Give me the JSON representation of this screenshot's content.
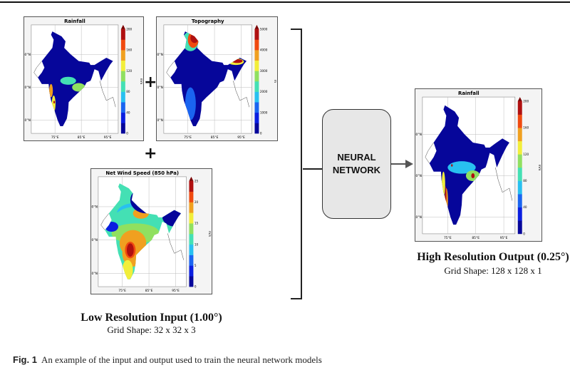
{
  "colors": {
    "jet": [
      "#06069a",
      "#0a1ee0",
      "#1a64f0",
      "#28c0f0",
      "#44e0b4",
      "#90e060",
      "#f2ee3a",
      "#f0a020",
      "#f04a10",
      "#b01010"
    ],
    "colorbar_top": "#7a0000",
    "network_box": "#e7e7e7"
  },
  "panels": {
    "rainfall_low": {
      "title": "Rainfall",
      "unit": "mm",
      "ticks": [
        "0",
        "40",
        "80",
        "120",
        "160",
        "200"
      ],
      "lat_labels": [
        "10°N",
        "20°N",
        "30°N"
      ],
      "lon_labels": [
        "75°E",
        "85°E",
        "95°E"
      ]
    },
    "topography": {
      "title": "Topography",
      "unit": "m",
      "ticks": [
        "0",
        "1000",
        "2000",
        "3000",
        "4000",
        "5000"
      ],
      "lat_labels": [
        "10°N",
        "20°N",
        "30°N"
      ],
      "lon_labels": [
        "75°E",
        "85°E",
        "95°E"
      ]
    },
    "wind": {
      "title": "Net Wind Speed (850 hPa)",
      "unit": "m/s",
      "ticks": [
        "0",
        "5",
        "10",
        "15",
        "20",
        "25"
      ],
      "lat_labels": [
        "10°N",
        "20°N",
        "30°N"
      ],
      "lon_labels": [
        "75°E",
        "85°E",
        "95°E"
      ]
    },
    "rainfall_high": {
      "title": "Rainfall",
      "unit": "mm",
      "ticks": [
        "0",
        "40",
        "80",
        "120",
        "160",
        "200"
      ],
      "lat_labels": [
        "10°N",
        "20°N",
        "30°N"
      ],
      "lon_labels": [
        "75°E",
        "85°E",
        "95°E"
      ]
    }
  },
  "operators": {
    "plus": "+"
  },
  "network": {
    "line1": "NEURAL",
    "line2": "NETWORK"
  },
  "input_label": {
    "title": "Low Resolution Input (1.00°)",
    "grid": "Grid Shape: 32 x 32 x 3"
  },
  "output_label": {
    "title": "High Resolution Output (0.25°)",
    "grid": "Grid Shape: 128 x 128 x 1"
  },
  "caption": {
    "label": "Fig. 1",
    "text": "An example of the input and output used to train the neural network models"
  }
}
